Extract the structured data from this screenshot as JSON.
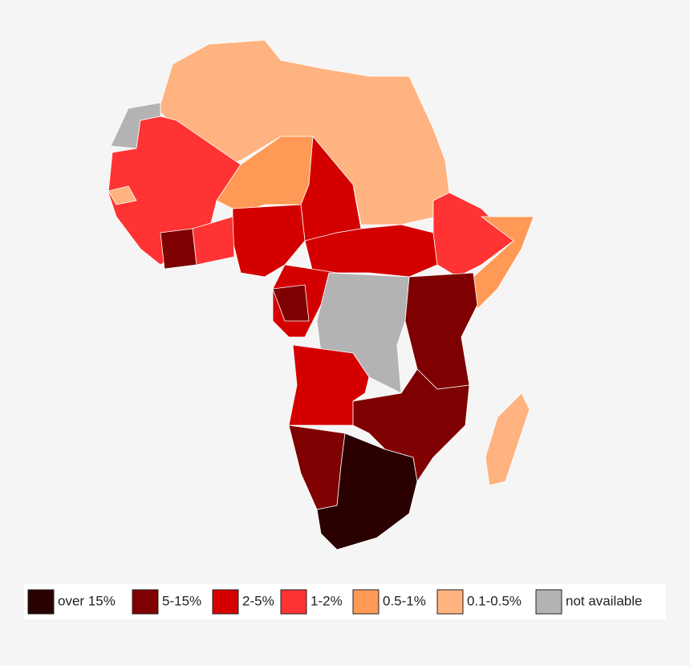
{
  "legend": {
    "items": [
      {
        "label": "over 15%",
        "color": "#2b0000"
      },
      {
        "label": "5-15%",
        "color": "#7f0000"
      },
      {
        "label": "2-5%",
        "color": "#d40000"
      },
      {
        "label": "1-2%",
        "color": "#ff3333"
      },
      {
        "label": "0.5-1%",
        "color": "#ff9955"
      },
      {
        "label": "0.1-0.5%",
        "color": "#ffb380"
      },
      {
        "label": "not available",
        "color": "#b3b3b3"
      }
    ]
  }
}
